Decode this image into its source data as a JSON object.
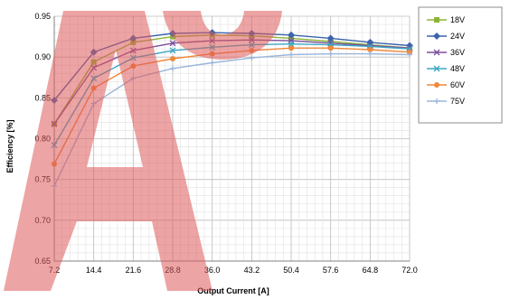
{
  "chart_data": {
    "type": "line",
    "title": "",
    "xlabel": "Output Current [A]",
    "ylabel": "Efficiency [%]",
    "x": [
      7.2,
      14.4,
      21.6,
      28.8,
      36.0,
      43.2,
      50.4,
      57.6,
      64.8,
      72.0
    ],
    "x_tick_labels": [
      "7.2",
      "14.4",
      "21.6",
      "28.8",
      "36.0",
      "43.2",
      "50.4",
      "57.6",
      "64.8",
      "72.0"
    ],
    "y_ticks": [
      0.65,
      0.7,
      0.75,
      0.8,
      0.85,
      0.9,
      0.95
    ],
    "y_tick_labels": [
      "0.65",
      "0.70",
      "0.75",
      "0.80",
      "0.85",
      "0.90",
      "0.95"
    ],
    "ylim": [
      0.65,
      0.95
    ],
    "grid": true,
    "legend_position": "right",
    "series": [
      {
        "name": "18V",
        "color": "#8db33a",
        "marker": "square",
        "values": [
          0.818,
          0.894,
          0.918,
          0.925,
          0.927,
          0.926,
          0.923,
          0.919,
          0.915,
          0.911
        ]
      },
      {
        "name": "24V",
        "color": "#3b64ad",
        "marker": "diamond",
        "values": [
          0.847,
          0.906,
          0.923,
          0.929,
          0.93,
          0.929,
          0.927,
          0.923,
          0.918,
          0.914
        ]
      },
      {
        "name": "36V",
        "color": "#7b4f9a",
        "marker": "x",
        "values": [
          0.818,
          0.887,
          0.908,
          0.917,
          0.92,
          0.921,
          0.92,
          0.917,
          0.914,
          0.911
        ]
      },
      {
        "name": "48V",
        "color": "#3aa7c4",
        "marker": "x",
        "values": [
          0.792,
          0.874,
          0.899,
          0.908,
          0.912,
          0.915,
          0.916,
          0.915,
          0.913,
          0.91
        ]
      },
      {
        "name": "60V",
        "color": "#f0883a",
        "marker": "circle",
        "values": [
          0.769,
          0.862,
          0.889,
          0.898,
          0.904,
          0.908,
          0.911,
          0.911,
          0.909,
          0.906
        ]
      },
      {
        "name": "75V",
        "color": "#9bb5db",
        "marker": "plus",
        "values": [
          0.742,
          0.843,
          0.874,
          0.886,
          0.893,
          0.899,
          0.903,
          0.904,
          0.904,
          0.903
        ]
      }
    ]
  }
}
